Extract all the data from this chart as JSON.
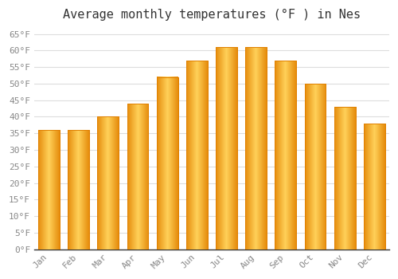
{
  "title": "Average monthly temperatures (°F ) in Nes",
  "months": [
    "Jan",
    "Feb",
    "Mar",
    "Apr",
    "May",
    "Jun",
    "Jul",
    "Aug",
    "Sep",
    "Oct",
    "Nov",
    "Dec"
  ],
  "values": [
    36,
    36,
    40,
    44,
    52,
    57,
    61,
    61,
    57,
    50,
    43,
    38
  ],
  "bar_color_face": "#FFA500",
  "bar_color_light": "#FFD97A",
  "bar_color_edge": "#E08000",
  "background_color": "#FFFFFF",
  "plot_bg_color": "#FFFFFF",
  "grid_color": "#DDDDDD",
  "yticks": [
    0,
    5,
    10,
    15,
    20,
    25,
    30,
    35,
    40,
    45,
    50,
    55,
    60,
    65
  ],
  "ylim": [
    0,
    67
  ],
  "title_fontsize": 11,
  "tick_fontsize": 8,
  "tick_color": "#888888",
  "axis_color": "#333333",
  "font_family": "monospace"
}
